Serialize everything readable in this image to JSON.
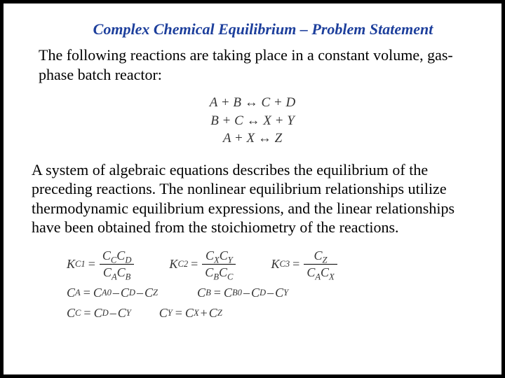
{
  "title": {
    "text": "Complex Chemical Equilibrium – Problem Statement",
    "color": "#1d3f9c",
    "fontsize": 22
  },
  "para1": {
    "text": "The following reactions are taking place in a constant volume, gas-phase batch reactor:",
    "fontsize": 22,
    "color": "#000000"
  },
  "reactions": {
    "fontsize": 19,
    "color": "#353535",
    "r1_left": "A + B",
    "r1_right": "C + D",
    "r2_left": "B + C",
    "r2_right": "X + Y",
    "r3_left": "A + X",
    "r3_right": "Z",
    "arrow": "↔"
  },
  "para2": {
    "text": "A system of algebraic equations describes the equilibrium of the preceding reactions. The nonlinear equilibrium relationships utilize thermodynamic equilibrium expressions, and the linear relationships have been obtained from the stoichiometry of the reactions.",
    "fontsize": 22,
    "color": "#000000"
  },
  "equations": {
    "fontsize": 18,
    "color": "#353535",
    "kc1": "K",
    "kc1_sub": "C1",
    "kc2": "K",
    "kc2_sub": "C2",
    "kc3": "K",
    "kc3_sub": "C3",
    "C": "C",
    "subA": "A",
    "subB": "B",
    "subC": "C",
    "subD": "D",
    "subX": "X",
    "subY": "Y",
    "subZ": "Z",
    "subA0": "A0",
    "subB0": "B0"
  }
}
